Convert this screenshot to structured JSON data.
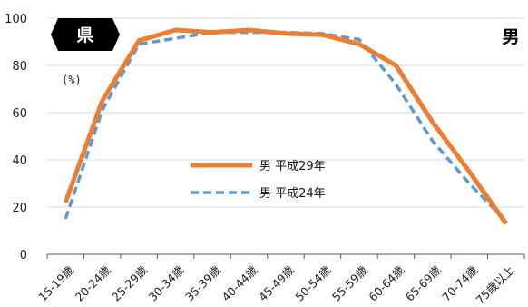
{
  "badge": {
    "label": "県"
  },
  "corner_label": "男",
  "unit_label": "(%)",
  "colors": {
    "series1": "#ED7D31",
    "series2": "#5B9BD5",
    "grid": "#d9d9d9",
    "axis": "#595959"
  },
  "chart_data": {
    "type": "line",
    "title": "",
    "xlabel": "",
    "ylabel": "",
    "ylim": [
      0,
      100
    ],
    "yticks": [
      0,
      20,
      40,
      60,
      80,
      100
    ],
    "grid": true,
    "legend_position": "center",
    "categories": [
      "15-19歳",
      "20-24歳",
      "25-29歳",
      "30-34歳",
      "35-39歳",
      "40-44歳",
      "45-49歳",
      "50-54歳",
      "55-59歳",
      "60-64歳",
      "65-69歳",
      "70-74歳",
      "75歳以上"
    ],
    "series": [
      {
        "name": "男 平成29年",
        "style": "solid",
        "values": [
          22,
          65,
          90.5,
          95,
          94,
          95,
          93.5,
          93,
          89,
          80,
          56,
          35,
          13
        ]
      },
      {
        "name": "男 平成24年",
        "style": "dashed",
        "values": [
          15,
          61,
          89,
          91.5,
          94,
          94,
          94,
          93.5,
          91,
          72,
          48,
          30,
          14
        ]
      }
    ]
  }
}
